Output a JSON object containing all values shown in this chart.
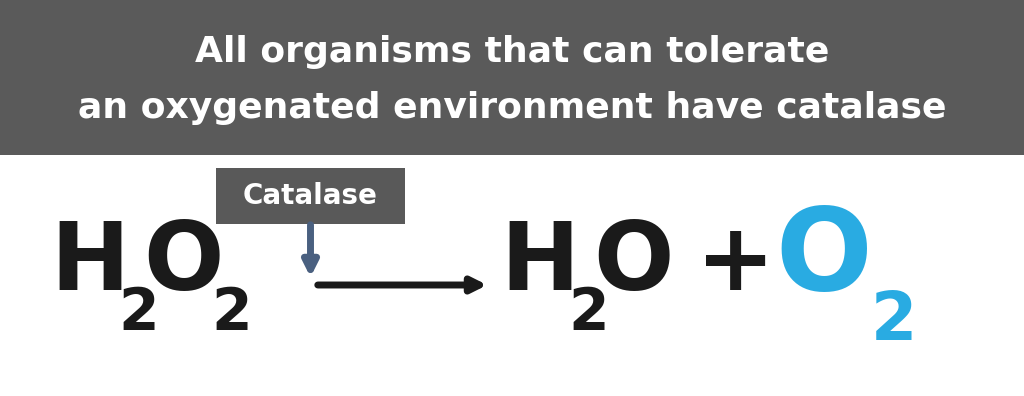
{
  "background_color": "#ffffff",
  "header_bg_color": "#5a5a5a",
  "header_text_line1": "All organisms that can tolerate",
  "header_text_line2": "an oxygenated environment have catalase",
  "header_text_color": "#ffffff",
  "header_fontsize": 26,
  "catalase_box_color": "#595959",
  "catalase_text": "Catalase",
  "catalase_text_color": "#ffffff",
  "catalase_fontsize": 20,
  "eq_black": "#1a1a1a",
  "eq_blue": "#29abe2",
  "down_arrow_color": "#4a6080",
  "arrow_lw": 5,
  "eq_fontsize": 68,
  "eq_sub_fontsize": 42
}
